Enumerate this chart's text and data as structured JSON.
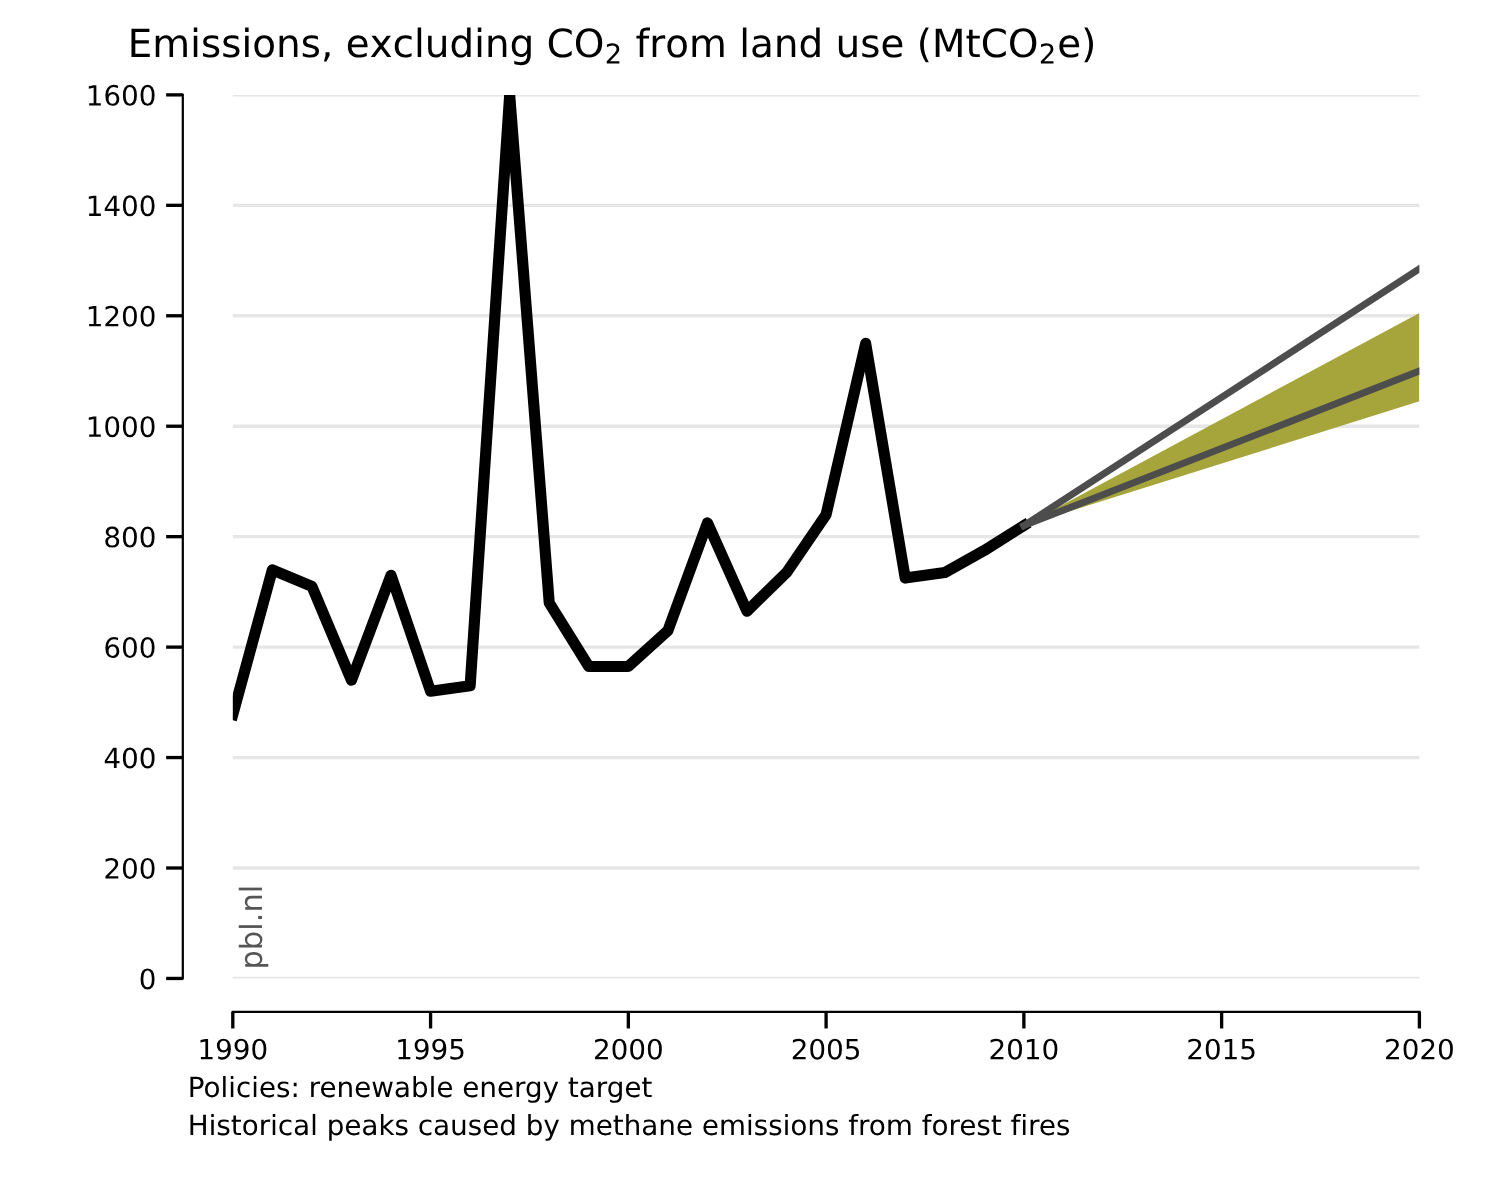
{
  "chart_data": {
    "type": "line",
    "title": "Emissions, excluding CO$_{2}$ from land use (MtCO$_{2}$e)",
    "series": [
      {
        "x": [
          1990,
          1991,
          1992,
          1993,
          1994,
          1995,
          1996,
          1997,
          1998,
          1999,
          2000,
          2001,
          2002,
          2003,
          2004,
          2005,
          2006,
          2007,
          2008,
          2009,
          2010
        ],
        "values": [
          478,
          740,
          710,
          540,
          730,
          520,
          530,
          1600,
          680,
          565,
          565,
          630,
          825,
          665,
          735,
          840,
          1150,
          725,
          735,
          775,
          820
        ],
        "color": "#000000"
      },
      {
        "x": [
          2010,
          2020
        ],
        "values": [
          820,
          1285
        ],
        "color": "#4d4d4d"
      },
      {
        "x": [
          2010,
          2020
        ],
        "values": [
          820,
          1100
        ],
        "lower": [
          820,
          1045
        ],
        "upper": [
          820,
          1205
        ],
        "color": "#4d4d4d"
      }
    ],
    "xlim": [
      1990,
      2020
    ],
    "xticks": [
      1990,
      1995,
      2000,
      2005,
      2010,
      2015,
      2020
    ],
    "ylim": [
      0,
      1600
    ],
    "yticks": [
      0,
      200,
      400,
      600,
      800,
      1000,
      1200,
      1400,
      1600
    ],
    "grid": "y",
    "annotations": [
      "pbl.nl",
      "Policies: renewable energy target",
      "Historical peaks caused by methane emissions from forest fires"
    ]
  }
}
